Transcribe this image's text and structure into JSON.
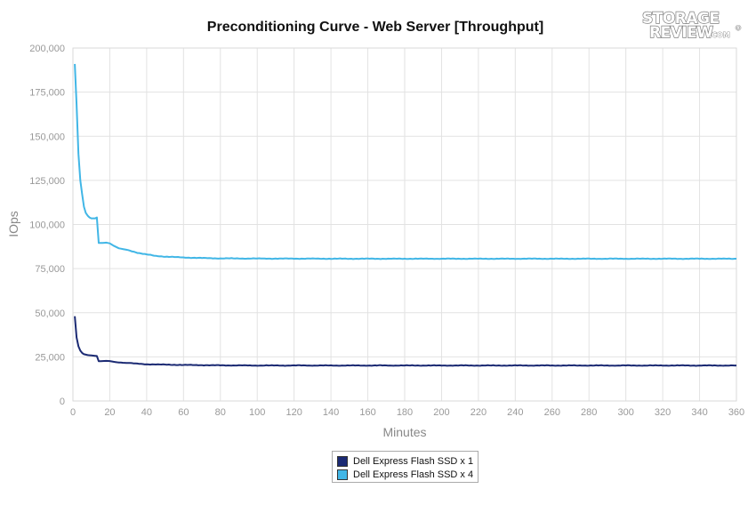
{
  "chart_data": {
    "type": "line",
    "title": "Preconditioning Curve - Web Server [Throughput]",
    "xlabel": "Minutes",
    "ylabel": "IOps",
    "xlim": [
      0,
      360
    ],
    "ylim": [
      0,
      200000
    ],
    "x_ticks": [
      0,
      20,
      40,
      60,
      80,
      100,
      120,
      140,
      160,
      180,
      200,
      220,
      240,
      260,
      280,
      300,
      320,
      340,
      360
    ],
    "x_tick_labels": [
      "0",
      "20",
      "40",
      "60",
      "80",
      "100",
      "120",
      "140",
      "160",
      "180",
      "200",
      "220",
      "240",
      "260",
      "280",
      "300",
      "320",
      "340",
      "360"
    ],
    "y_ticks": [
      0,
      25000,
      50000,
      75000,
      100000,
      125000,
      150000,
      175000,
      200000
    ],
    "y_tick_labels": [
      "0",
      "25,000",
      "50,000",
      "75,000",
      "100,000",
      "125,000",
      "150,000",
      "175,000",
      "200,000"
    ],
    "grid": true,
    "legend_position": "bottom-center",
    "series": [
      {
        "name": "Dell Express Flash SSD x 1",
        "color": "#1b2a73",
        "points": [
          [
            1,
            48000
          ],
          [
            2,
            36000
          ],
          [
            3,
            31000
          ],
          [
            4,
            28500
          ],
          [
            5,
            27200
          ],
          [
            6,
            26500
          ],
          [
            8,
            26000
          ],
          [
            10,
            25800
          ],
          [
            12,
            25600
          ],
          [
            13,
            25500
          ],
          [
            14,
            22500
          ],
          [
            16,
            22600
          ],
          [
            18,
            22700
          ],
          [
            20,
            22600
          ],
          [
            22,
            22200
          ],
          [
            25,
            21800
          ],
          [
            30,
            21500
          ],
          [
            35,
            21100
          ],
          [
            40,
            20800
          ],
          [
            50,
            20600
          ],
          [
            60,
            20400
          ],
          [
            80,
            20200
          ],
          [
            100,
            20100
          ],
          [
            150,
            20100
          ],
          [
            200,
            20100
          ],
          [
            250,
            20100
          ],
          [
            300,
            20100
          ],
          [
            360,
            20100
          ]
        ]
      },
      {
        "name": "Dell Express Flash SSD x 4",
        "color": "#41b6e6",
        "points": [
          [
            1,
            191000
          ],
          [
            2,
            168000
          ],
          [
            3,
            140000
          ],
          [
            4,
            125000
          ],
          [
            5,
            117000
          ],
          [
            6,
            110000
          ],
          [
            7,
            106500
          ],
          [
            8,
            105000
          ],
          [
            9,
            104000
          ],
          [
            10,
            103500
          ],
          [
            12,
            103500
          ],
          [
            13,
            104000
          ],
          [
            14,
            89500
          ],
          [
            16,
            89500
          ],
          [
            18,
            89700
          ],
          [
            20,
            89300
          ],
          [
            22,
            88000
          ],
          [
            25,
            86500
          ],
          [
            30,
            85500
          ],
          [
            35,
            84000
          ],
          [
            40,
            83000
          ],
          [
            45,
            82200
          ],
          [
            50,
            81800
          ],
          [
            60,
            81300
          ],
          [
            70,
            81000
          ],
          [
            80,
            80800
          ],
          [
            100,
            80700
          ],
          [
            150,
            80600
          ],
          [
            200,
            80600
          ],
          [
            250,
            80600
          ],
          [
            300,
            80600
          ],
          [
            360,
            80600
          ]
        ]
      }
    ]
  }
}
